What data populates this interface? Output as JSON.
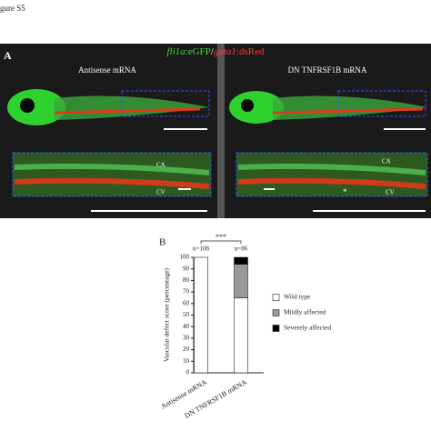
{
  "figure_label": "gure S5",
  "panel_a": {
    "label": "A",
    "title_parts": [
      "fli1a",
      ":eGFP",
      "/",
      "gata1",
      ":dsRed"
    ],
    "columns": [
      "Antisense mRNA",
      "DN TNFRSF1B mRNA"
    ],
    "annotations_left": [
      "CA",
      "CV"
    ],
    "annotations_right": [
      "CA",
      "CV",
      "*"
    ]
  },
  "chart_data": {
    "type": "stacked_bar",
    "label": "B",
    "categories": [
      "Antisense mRNA",
      "DN TNFRSF1B mRNA"
    ],
    "n_labels": [
      "n=108",
      "n=86"
    ],
    "significance": "***",
    "ylabel": "Vascular defect score (percentage)",
    "ylim": [
      0,
      100
    ],
    "yticks": [
      0,
      10,
      20,
      30,
      40,
      50,
      60,
      70,
      80,
      90,
      100
    ],
    "series": [
      {
        "name": "Wild type",
        "color": "#ffffff",
        "values": [
          100,
          65
        ]
      },
      {
        "name": "Mildly affected",
        "color": "#999999",
        "values": [
          0,
          29
        ]
      },
      {
        "name": "Severely affected",
        "color": "#000000",
        "values": [
          0,
          6
        ]
      }
    ]
  }
}
